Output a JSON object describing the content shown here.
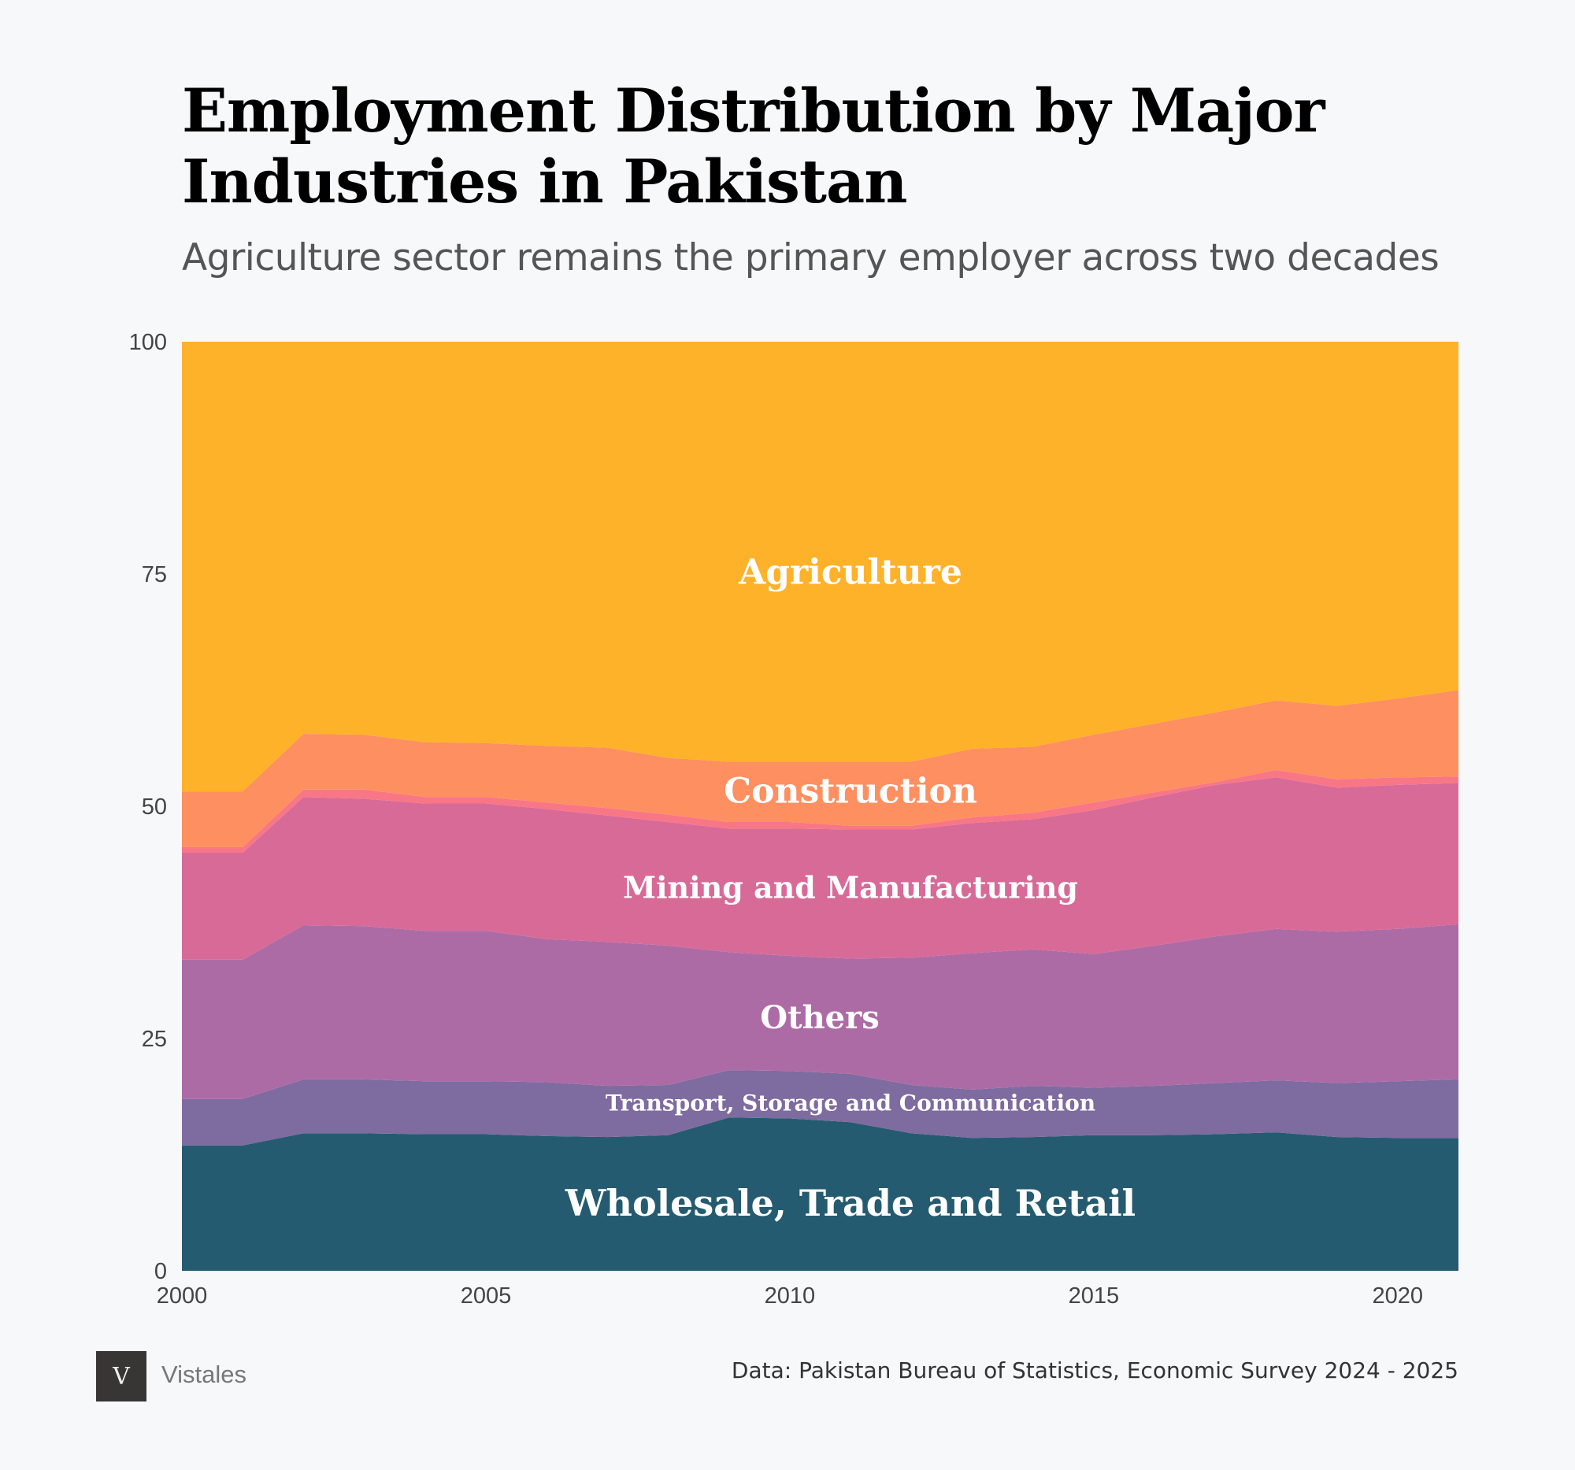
{
  "header": {
    "title": "Employment Distribution by Major Industries in Pakistan",
    "subtitle": "Agriculture sector remains the primary employer across two decades"
  },
  "footer": {
    "brand": "Vistales",
    "logo_text": "V",
    "source": "Data: Pakistan Bureau of Statistics, Economic Survey 2024 - 2025"
  },
  "chart_data": {
    "type": "area",
    "stacked": true,
    "title": "Employment Distribution by Major Industries in Pakistan",
    "xlabel": "",
    "ylabel": "",
    "xlim": [
      2000,
      2021
    ],
    "ylim": [
      0,
      100
    ],
    "yticks": [
      "0",
      "25",
      "50",
      "75",
      "100"
    ],
    "xticks": [
      "2000",
      "2005",
      "2010",
      "2015",
      "2020"
    ],
    "x": [
      2000,
      2001,
      2002,
      2003,
      2004,
      2005,
      2006,
      2007,
      2008,
      2009,
      2010,
      2011,
      2012,
      2013,
      2014,
      2015,
      2016,
      2017,
      2018,
      2019,
      2020,
      2021
    ],
    "series": [
      {
        "name": "Wholesale, Trade and Retail",
        "color": "#255b70",
        "values": [
          13.5,
          13.5,
          14.8,
          14.8,
          14.7,
          14.7,
          14.5,
          14.4,
          14.6,
          16.5,
          16.4,
          16.0,
          14.8,
          14.3,
          14.4,
          14.6,
          14.6,
          14.7,
          14.9,
          14.4,
          14.3,
          14.3
        ]
      },
      {
        "name": "Transport, Storage and Communication",
        "color": "#7e6b9f",
        "values": [
          5.0,
          5.0,
          5.8,
          5.8,
          5.7,
          5.7,
          5.8,
          5.5,
          5.4,
          5.1,
          5.1,
          5.2,
          5.2,
          5.2,
          5.5,
          5.1,
          5.3,
          5.5,
          5.6,
          5.8,
          6.1,
          6.3
        ]
      },
      {
        "name": "Others",
        "color": "#ad6ba6",
        "values": [
          15.0,
          15.0,
          16.6,
          16.5,
          16.2,
          16.2,
          15.4,
          15.5,
          15.0,
          12.7,
          12.4,
          12.4,
          13.7,
          14.7,
          14.7,
          14.4,
          15.1,
          15.8,
          16.3,
          16.3,
          16.4,
          16.7
        ]
      },
      {
        "name": "Mining and Manufacturing",
        "color": "#d86a98",
        "values": [
          11.5,
          11.5,
          13.8,
          13.7,
          13.7,
          13.7,
          14.0,
          13.6,
          13.3,
          13.3,
          13.7,
          13.9,
          13.8,
          14.0,
          14.0,
          15.5,
          16.0,
          16.3,
          16.3,
          15.5,
          15.5,
          15.2
        ]
      },
      {
        "name": "",
        "color": "#f87686",
        "values": [
          0.6,
          0.6,
          0.8,
          1.0,
          0.7,
          0.7,
          0.7,
          0.8,
          0.8,
          0.7,
          0.7,
          0.4,
          0.4,
          0.6,
          0.7,
          0.8,
          0.5,
          0.3,
          0.8,
          0.9,
          0.8,
          0.7
        ]
      },
      {
        "name": "Construction",
        "color": "#fe8f60",
        "values": [
          6.0,
          6.0,
          6.0,
          5.9,
          5.9,
          5.8,
          6.1,
          6.5,
          6.1,
          6.5,
          6.5,
          6.9,
          6.9,
          7.4,
          7.1,
          7.3,
          7.4,
          7.5,
          7.5,
          7.9,
          8.5,
          9.3
        ]
      },
      {
        "name": "Agriculture",
        "color": "#feb22a",
        "values": [
          48.4,
          48.4,
          42.2,
          42.3,
          43.1,
          43.2,
          43.5,
          43.7,
          44.8,
          45.2,
          45.2,
          45.2,
          45.2,
          43.8,
          43.6,
          42.3,
          41.1,
          39.9,
          38.6,
          39.2,
          38.4,
          37.5
        ]
      }
    ]
  }
}
